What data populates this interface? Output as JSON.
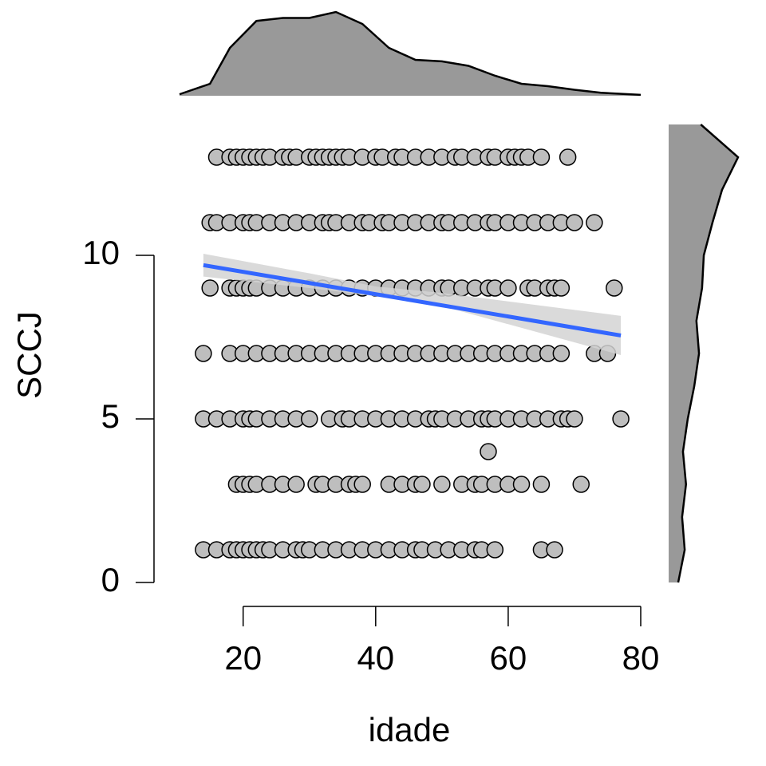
{
  "chart_data": {
    "type": "scatter",
    "x_label": "idade",
    "y_label": "SCCJ",
    "xlim": [
      10.4,
      80
    ],
    "ylim": [
      0,
      14
    ],
    "xticks": [
      20,
      40,
      60,
      80
    ],
    "yticks": [
      0,
      5,
      10
    ],
    "point_color": "#bebebe",
    "density_color": "#999999",
    "fit_color": "#3366ff",
    "ci_color": "#d3d3d3",
    "x": [
      16,
      18,
      19,
      20,
      21,
      22,
      23,
      24,
      26,
      27,
      28,
      30,
      31,
      32,
      33,
      34,
      35,
      36,
      38,
      40,
      41,
      43,
      44,
      46,
      48,
      50,
      52,
      53,
      55,
      57,
      58,
      60,
      61,
      62,
      63,
      65,
      69,
      15,
      16,
      18,
      20,
      21,
      22,
      24,
      26,
      28,
      30,
      32,
      33,
      34,
      36,
      38,
      39,
      41,
      42,
      44,
      46,
      48,
      50,
      51,
      53,
      55,
      57,
      58,
      60,
      62,
      64,
      66,
      68,
      70,
      73,
      15,
      18,
      19,
      20,
      21,
      22,
      24,
      26,
      28,
      30,
      32,
      34,
      36,
      38,
      40,
      42,
      44,
      46,
      48,
      50,
      51,
      53,
      55,
      57,
      58,
      60,
      63,
      64,
      66,
      67,
      68,
      76,
      14,
      18,
      20,
      22,
      24,
      26,
      28,
      30,
      32,
      34,
      36,
      38,
      40,
      42,
      44,
      46,
      48,
      50,
      52,
      54,
      56,
      58,
      60,
      62,
      64,
      66,
      68,
      73,
      75,
      14,
      16,
      18,
      20,
      21,
      22,
      24,
      26,
      28,
      30,
      33,
      35,
      36,
      38,
      40,
      42,
      44,
      46,
      48,
      49,
      50,
      52,
      54,
      56,
      57,
      58,
      60,
      62,
      64,
      66,
      68,
      69,
      70,
      77,
      57,
      19,
      20,
      21,
      22,
      24,
      26,
      28,
      31,
      32,
      34,
      36,
      37,
      38,
      42,
      44,
      46,
      47,
      50,
      53,
      55,
      56,
      58,
      60,
      62,
      65,
      71,
      14,
      16,
      18,
      19,
      20,
      21,
      22,
      23,
      24,
      26,
      28,
      29,
      30,
      32,
      34,
      36,
      38,
      40,
      42,
      44,
      46,
      47,
      49,
      51,
      53,
      55,
      56,
      58,
      65,
      67
    ],
    "y": [
      13,
      13,
      13,
      13,
      13,
      13,
      13,
      13,
      13,
      13,
      13,
      13,
      13,
      13,
      13,
      13,
      13,
      13,
      13,
      13,
      13,
      13,
      13,
      13,
      13,
      13,
      13,
      13,
      13,
      13,
      13,
      13,
      13,
      13,
      13,
      13,
      13,
      11,
      11,
      11,
      11,
      11,
      11,
      11,
      11,
      11,
      11,
      11,
      11,
      11,
      11,
      11,
      11,
      11,
      11,
      11,
      11,
      11,
      11,
      11,
      11,
      11,
      11,
      11,
      11,
      11,
      11,
      11,
      11,
      11,
      11,
      9,
      9,
      9,
      9,
      9,
      9,
      9,
      9,
      9,
      9,
      9,
      9,
      9,
      9,
      9,
      9,
      9,
      9,
      9,
      9,
      9,
      9,
      9,
      9,
      9,
      9,
      9,
      9,
      9,
      9,
      9,
      9,
      7,
      7,
      7,
      7,
      7,
      7,
      7,
      7,
      7,
      7,
      7,
      7,
      7,
      7,
      7,
      7,
      7,
      7,
      7,
      7,
      7,
      7,
      7,
      7,
      7,
      7,
      7,
      7,
      7,
      5,
      5,
      5,
      5,
      5,
      5,
      5,
      5,
      5,
      5,
      5,
      5,
      5,
      5,
      5,
      5,
      5,
      5,
      5,
      5,
      5,
      5,
      5,
      5,
      5,
      5,
      5,
      5,
      5,
      5,
      5,
      5,
      5,
      5,
      4,
      3,
      3,
      3,
      3,
      3,
      3,
      3,
      3,
      3,
      3,
      3,
      3,
      3,
      3,
      3,
      3,
      3,
      3,
      3,
      3,
      3,
      3,
      3,
      3,
      3,
      3,
      1,
      1,
      1,
      1,
      1,
      1,
      1,
      1,
      1,
      1,
      1,
      1,
      1,
      1,
      1,
      1,
      1,
      1,
      1,
      1,
      1,
      1,
      1,
      1,
      1,
      1,
      1,
      1,
      1,
      1
    ],
    "fit": {
      "x": [
        14,
        77
      ],
      "y": [
        9.7,
        7.55
      ]
    },
    "ci": {
      "x": [
        14,
        30,
        40,
        50,
        77
      ],
      "lower": [
        9.35,
        9.0,
        8.75,
        8.45,
        6.95
      ],
      "upper": [
        10.05,
        9.45,
        9.05,
        8.85,
        8.15
      ]
    },
    "x_density": {
      "x": [
        10.4,
        15,
        18,
        22,
        26,
        30,
        34,
        38,
        42,
        46,
        50,
        54,
        58,
        62,
        66,
        70,
        74,
        80
      ],
      "values": [
        0.0005,
        0.004,
        0.016,
        0.025,
        0.026,
        0.026,
        0.028,
        0.024,
        0.016,
        0.012,
        0.0115,
        0.01,
        0.0067,
        0.004,
        0.0032,
        0.002,
        0.001,
        0.0003
      ]
    },
    "y_density": {
      "y": [
        0,
        1,
        2,
        3,
        4,
        5,
        6,
        7,
        8,
        9,
        10,
        11,
        12,
        13,
        14
      ],
      "values": [
        0.022,
        0.037,
        0.031,
        0.04,
        0.033,
        0.044,
        0.059,
        0.07,
        0.064,
        0.077,
        0.081,
        0.101,
        0.123,
        0.16,
        0.074
      ]
    }
  }
}
